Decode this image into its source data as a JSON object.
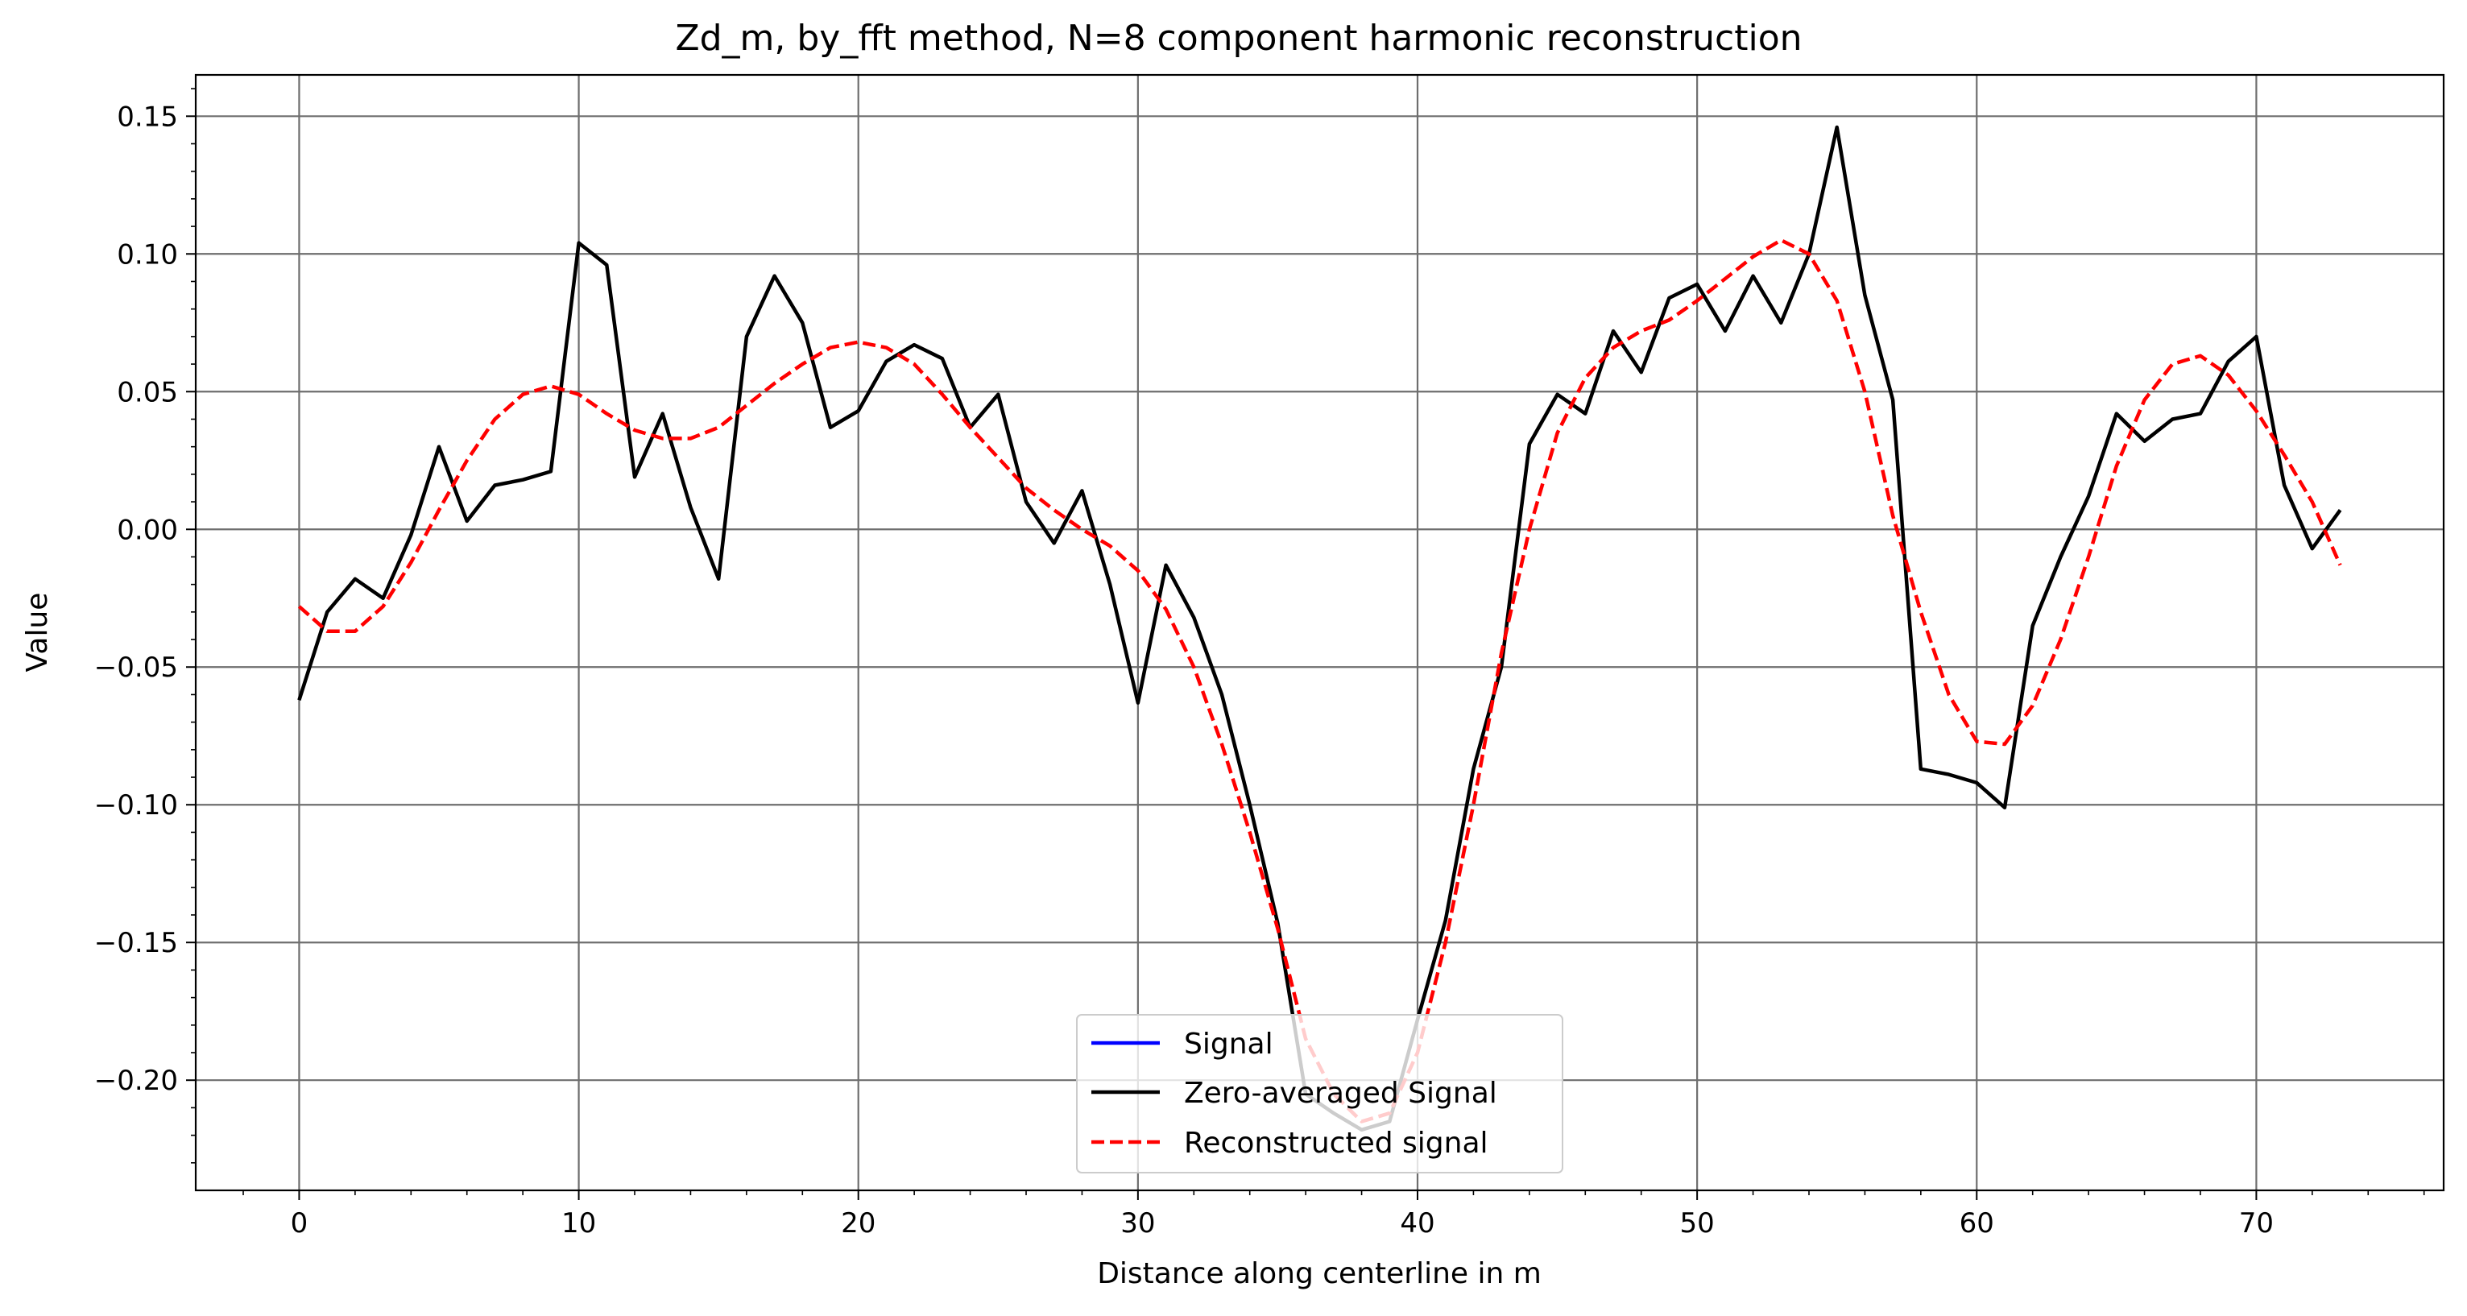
{
  "chart_data": {
    "type": "line",
    "title": "Zd_m, by_fft method, N=8 component harmonic reconstruction",
    "xlabel": "Distance along centerline in m",
    "ylabel": "Value",
    "xlim": [
      -3.7,
      76.7
    ],
    "ylim": [
      -0.24,
      0.165
    ],
    "xticks": [
      0,
      10,
      20,
      30,
      40,
      50,
      60,
      70
    ],
    "yticks": [
      0.15,
      0.1,
      0.05,
      0.0,
      -0.05,
      -0.1,
      -0.15,
      -0.2
    ],
    "ytick_labels": [
      "0.15",
      "0.10",
      "0.05",
      "0.00",
      "−0.05",
      "−0.10",
      "−0.15",
      "−0.20"
    ],
    "grid": true,
    "legend_position": "bottom-center",
    "series": [
      {
        "name": "Signal",
        "color": "#0000ff",
        "style": "solid",
        "x": [],
        "y": []
      },
      {
        "name": "Zero-averaged Signal",
        "color": "#000000",
        "style": "solid",
        "x": [
          0,
          1,
          2,
          3,
          4,
          5,
          6,
          7,
          8,
          9,
          10,
          11,
          12,
          13,
          14,
          15,
          16,
          17,
          18,
          19,
          20,
          21,
          22,
          23,
          24,
          25,
          26,
          27,
          28,
          29,
          30,
          31,
          32,
          33,
          34,
          35,
          36,
          37,
          38,
          39,
          40,
          41,
          42,
          43,
          44,
          45,
          46,
          47,
          48,
          49,
          50,
          51,
          52,
          53,
          54,
          55,
          56,
          57,
          58,
          59,
          60,
          61,
          62,
          63,
          64,
          65,
          66,
          67,
          68,
          69,
          70,
          71,
          72,
          73
        ],
        "y": [
          -0.062,
          -0.03,
          -0.018,
          -0.025,
          -0.002,
          0.03,
          0.003,
          0.016,
          0.018,
          0.021,
          0.104,
          0.096,
          0.019,
          0.042,
          0.008,
          -0.018,
          0.07,
          0.092,
          0.075,
          0.037,
          0.043,
          0.061,
          0.067,
          0.062,
          0.037,
          0.049,
          0.01,
          -0.005,
          0.014,
          -0.02,
          -0.063,
          -0.013,
          -0.032,
          -0.06,
          -0.1,
          -0.143,
          -0.205,
          -0.212,
          -0.218,
          -0.215,
          -0.178,
          -0.142,
          -0.087,
          -0.05,
          0.031,
          0.049,
          0.042,
          0.072,
          0.057,
          0.084,
          0.089,
          0.072,
          0.092,
          0.075,
          0.1,
          0.146,
          0.085,
          0.047,
          -0.087,
          -0.089,
          -0.092,
          -0.101,
          -0.035,
          -0.01,
          0.012,
          0.042,
          0.032,
          0.04,
          0.042,
          0.061,
          0.07,
          0.016,
          -0.007,
          0.007
        ]
      },
      {
        "name": "Reconstructed signal",
        "color": "#ff0000",
        "style": "dashed",
        "x": [
          0,
          1,
          2,
          3,
          4,
          5,
          6,
          7,
          8,
          9,
          10,
          11,
          12,
          13,
          14,
          15,
          16,
          17,
          18,
          19,
          20,
          21,
          22,
          23,
          24,
          25,
          26,
          27,
          28,
          29,
          30,
          31,
          32,
          33,
          34,
          35,
          36,
          37,
          38,
          39,
          40,
          41,
          42,
          43,
          44,
          45,
          46,
          47,
          48,
          49,
          50,
          51,
          52,
          53,
          54,
          55,
          56,
          57,
          58,
          59,
          60,
          61,
          62,
          63,
          64,
          65,
          66,
          67,
          68,
          69,
          70,
          71,
          72,
          73
        ],
        "y": [
          -0.028,
          -0.037,
          -0.037,
          -0.028,
          -0.012,
          0.007,
          0.025,
          0.04,
          0.049,
          0.052,
          0.049,
          0.042,
          0.036,
          0.033,
          0.033,
          0.037,
          0.045,
          0.053,
          0.06,
          0.066,
          0.068,
          0.066,
          0.06,
          0.049,
          0.037,
          0.026,
          0.015,
          0.007,
          0.0,
          -0.006,
          -0.015,
          -0.029,
          -0.05,
          -0.078,
          -0.11,
          -0.145,
          -0.185,
          -0.205,
          -0.215,
          -0.212,
          -0.19,
          -0.15,
          -0.1,
          -0.045,
          0.0,
          0.035,
          0.055,
          0.066,
          0.072,
          0.076,
          0.083,
          0.091,
          0.099,
          0.105,
          0.1,
          0.083,
          0.05,
          0.005,
          -0.03,
          -0.06,
          -0.077,
          -0.078,
          -0.064,
          -0.04,
          -0.01,
          0.023,
          0.047,
          0.06,
          0.063,
          0.056,
          0.043,
          0.027,
          0.01,
          -0.013
        ]
      }
    ]
  }
}
